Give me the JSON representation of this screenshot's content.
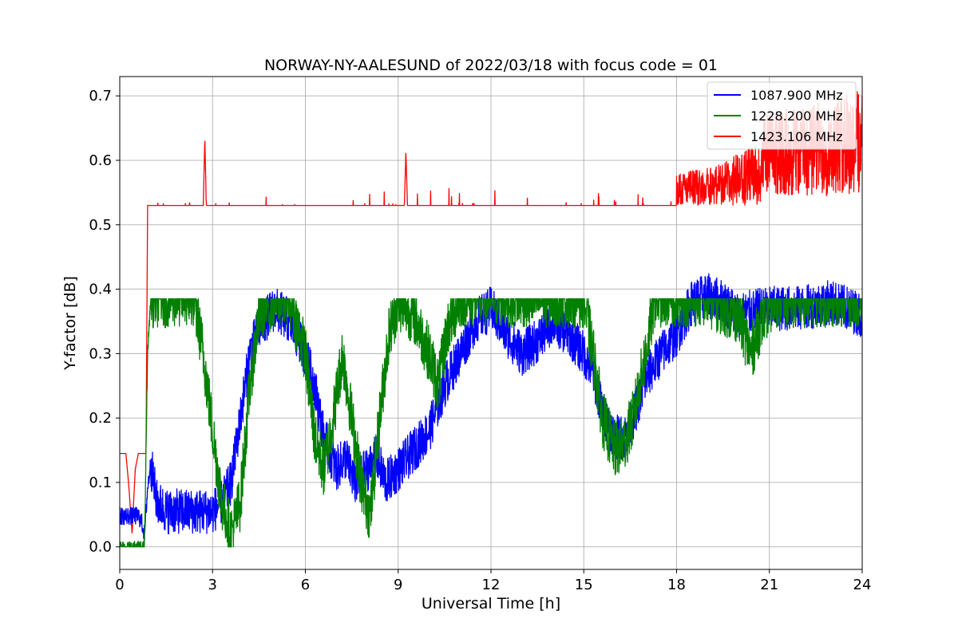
{
  "chart_data": {
    "type": "line",
    "title": "NORWAY-NY-AALESUND of 2022/03/18 with focus code = 01",
    "xlabel": "Universal Time [h]",
    "ylabel": "Y-factor [dB]",
    "xlim": [
      0,
      24
    ],
    "ylim": [
      -0.035,
      0.73
    ],
    "xticks": [
      0,
      3,
      6,
      9,
      12,
      15,
      18,
      21,
      24
    ],
    "yticks": [
      0.0,
      0.1,
      0.2,
      0.3,
      0.4,
      0.5,
      0.6,
      0.7
    ],
    "grid": true,
    "legend_position": "top-right",
    "series": [
      {
        "name": "1087.900 MHz",
        "color": "#0000ff",
        "noise": 0.035,
        "x": [
          0,
          0.6,
          0.7,
          0.8,
          0.9,
          1.0,
          1.2,
          1.5,
          2.0,
          2.5,
          3.0,
          3.3,
          3.6,
          3.9,
          4.2,
          4.5,
          5.0,
          5.5,
          6.0,
          6.3,
          6.6,
          7.0,
          7.3,
          7.6,
          8.0,
          8.3,
          8.6,
          9.0,
          9.5,
          10.0,
          10.5,
          11.0,
          11.5,
          12.0,
          12.5,
          13.0,
          13.5,
          14.0,
          14.5,
          15.0,
          15.3,
          15.6,
          16.0,
          16.3,
          16.6,
          17.0,
          17.5,
          18.0,
          18.5,
          19.0,
          19.5,
          20.0,
          21.0,
          22.0,
          23.0,
          24.0
        ],
        "y": [
          0.048,
          0.048,
          0.04,
          0.02,
          0.09,
          0.13,
          0.07,
          0.055,
          0.055,
          0.055,
          0.055,
          0.07,
          0.1,
          0.2,
          0.3,
          0.34,
          0.37,
          0.35,
          0.3,
          0.25,
          0.17,
          0.12,
          0.14,
          0.1,
          0.12,
          0.14,
          0.1,
          0.12,
          0.15,
          0.18,
          0.25,
          0.3,
          0.35,
          0.37,
          0.33,
          0.3,
          0.32,
          0.35,
          0.33,
          0.3,
          0.27,
          0.21,
          0.17,
          0.17,
          0.2,
          0.26,
          0.3,
          0.33,
          0.38,
          0.39,
          0.38,
          0.36,
          0.37,
          0.37,
          0.38,
          0.36
        ]
      },
      {
        "name": "1228.200 MHz",
        "color": "#008000",
        "noise": 0.045,
        "cap": 0.385,
        "x": [
          0,
          0.8,
          0.9,
          1.0,
          2.0,
          2.4,
          2.7,
          3.0,
          3.3,
          3.6,
          3.9,
          4.2,
          4.5,
          5.0,
          5.5,
          6.0,
          6.3,
          6.6,
          6.9,
          7.2,
          7.5,
          7.8,
          8.1,
          8.4,
          8.7,
          9.0,
          9.5,
          10.0,
          10.3,
          10.6,
          11.0,
          12.0,
          13.0,
          14.0,
          15.0,
          15.3,
          15.6,
          16.0,
          16.3,
          16.6,
          17.0,
          17.3,
          17.6,
          18.0,
          19.0,
          20.0,
          20.4,
          20.8,
          21.2,
          22.0,
          24.0
        ],
        "y": [
          0.0,
          0.0,
          0.3,
          0.385,
          0.385,
          0.385,
          0.3,
          0.18,
          0.07,
          0.02,
          0.07,
          0.25,
          0.36,
          0.385,
          0.385,
          0.3,
          0.17,
          0.12,
          0.2,
          0.3,
          0.2,
          0.1,
          0.05,
          0.2,
          0.33,
          0.38,
          0.36,
          0.3,
          0.25,
          0.34,
          0.385,
          0.385,
          0.385,
          0.385,
          0.385,
          0.3,
          0.2,
          0.15,
          0.16,
          0.2,
          0.3,
          0.385,
          0.385,
          0.385,
          0.385,
          0.36,
          0.3,
          0.36,
          0.385,
          0.385,
          0.385
        ]
      },
      {
        "name": "1423.106 MHz",
        "color": "#ff0000",
        "x": [
          0,
          0.2,
          0.3,
          0.4,
          0.5,
          0.6,
          0.85,
          0.9,
          0.95,
          1.0,
          2.7,
          2.75,
          2.8,
          9.2,
          9.25,
          9.3,
          18.0,
          19.0,
          20.0,
          21.0,
          22.0,
          23.0,
          24.0
        ],
        "y": [
          0.145,
          0.145,
          0.09,
          0.02,
          0.12,
          0.145,
          0.145,
          0.53,
          0.53,
          0.53,
          0.53,
          0.635,
          0.53,
          0.53,
          0.615,
          0.53,
          0.53,
          0.54,
          0.56,
          0.59,
          0.6,
          0.61,
          0.63
        ]
      }
    ]
  }
}
